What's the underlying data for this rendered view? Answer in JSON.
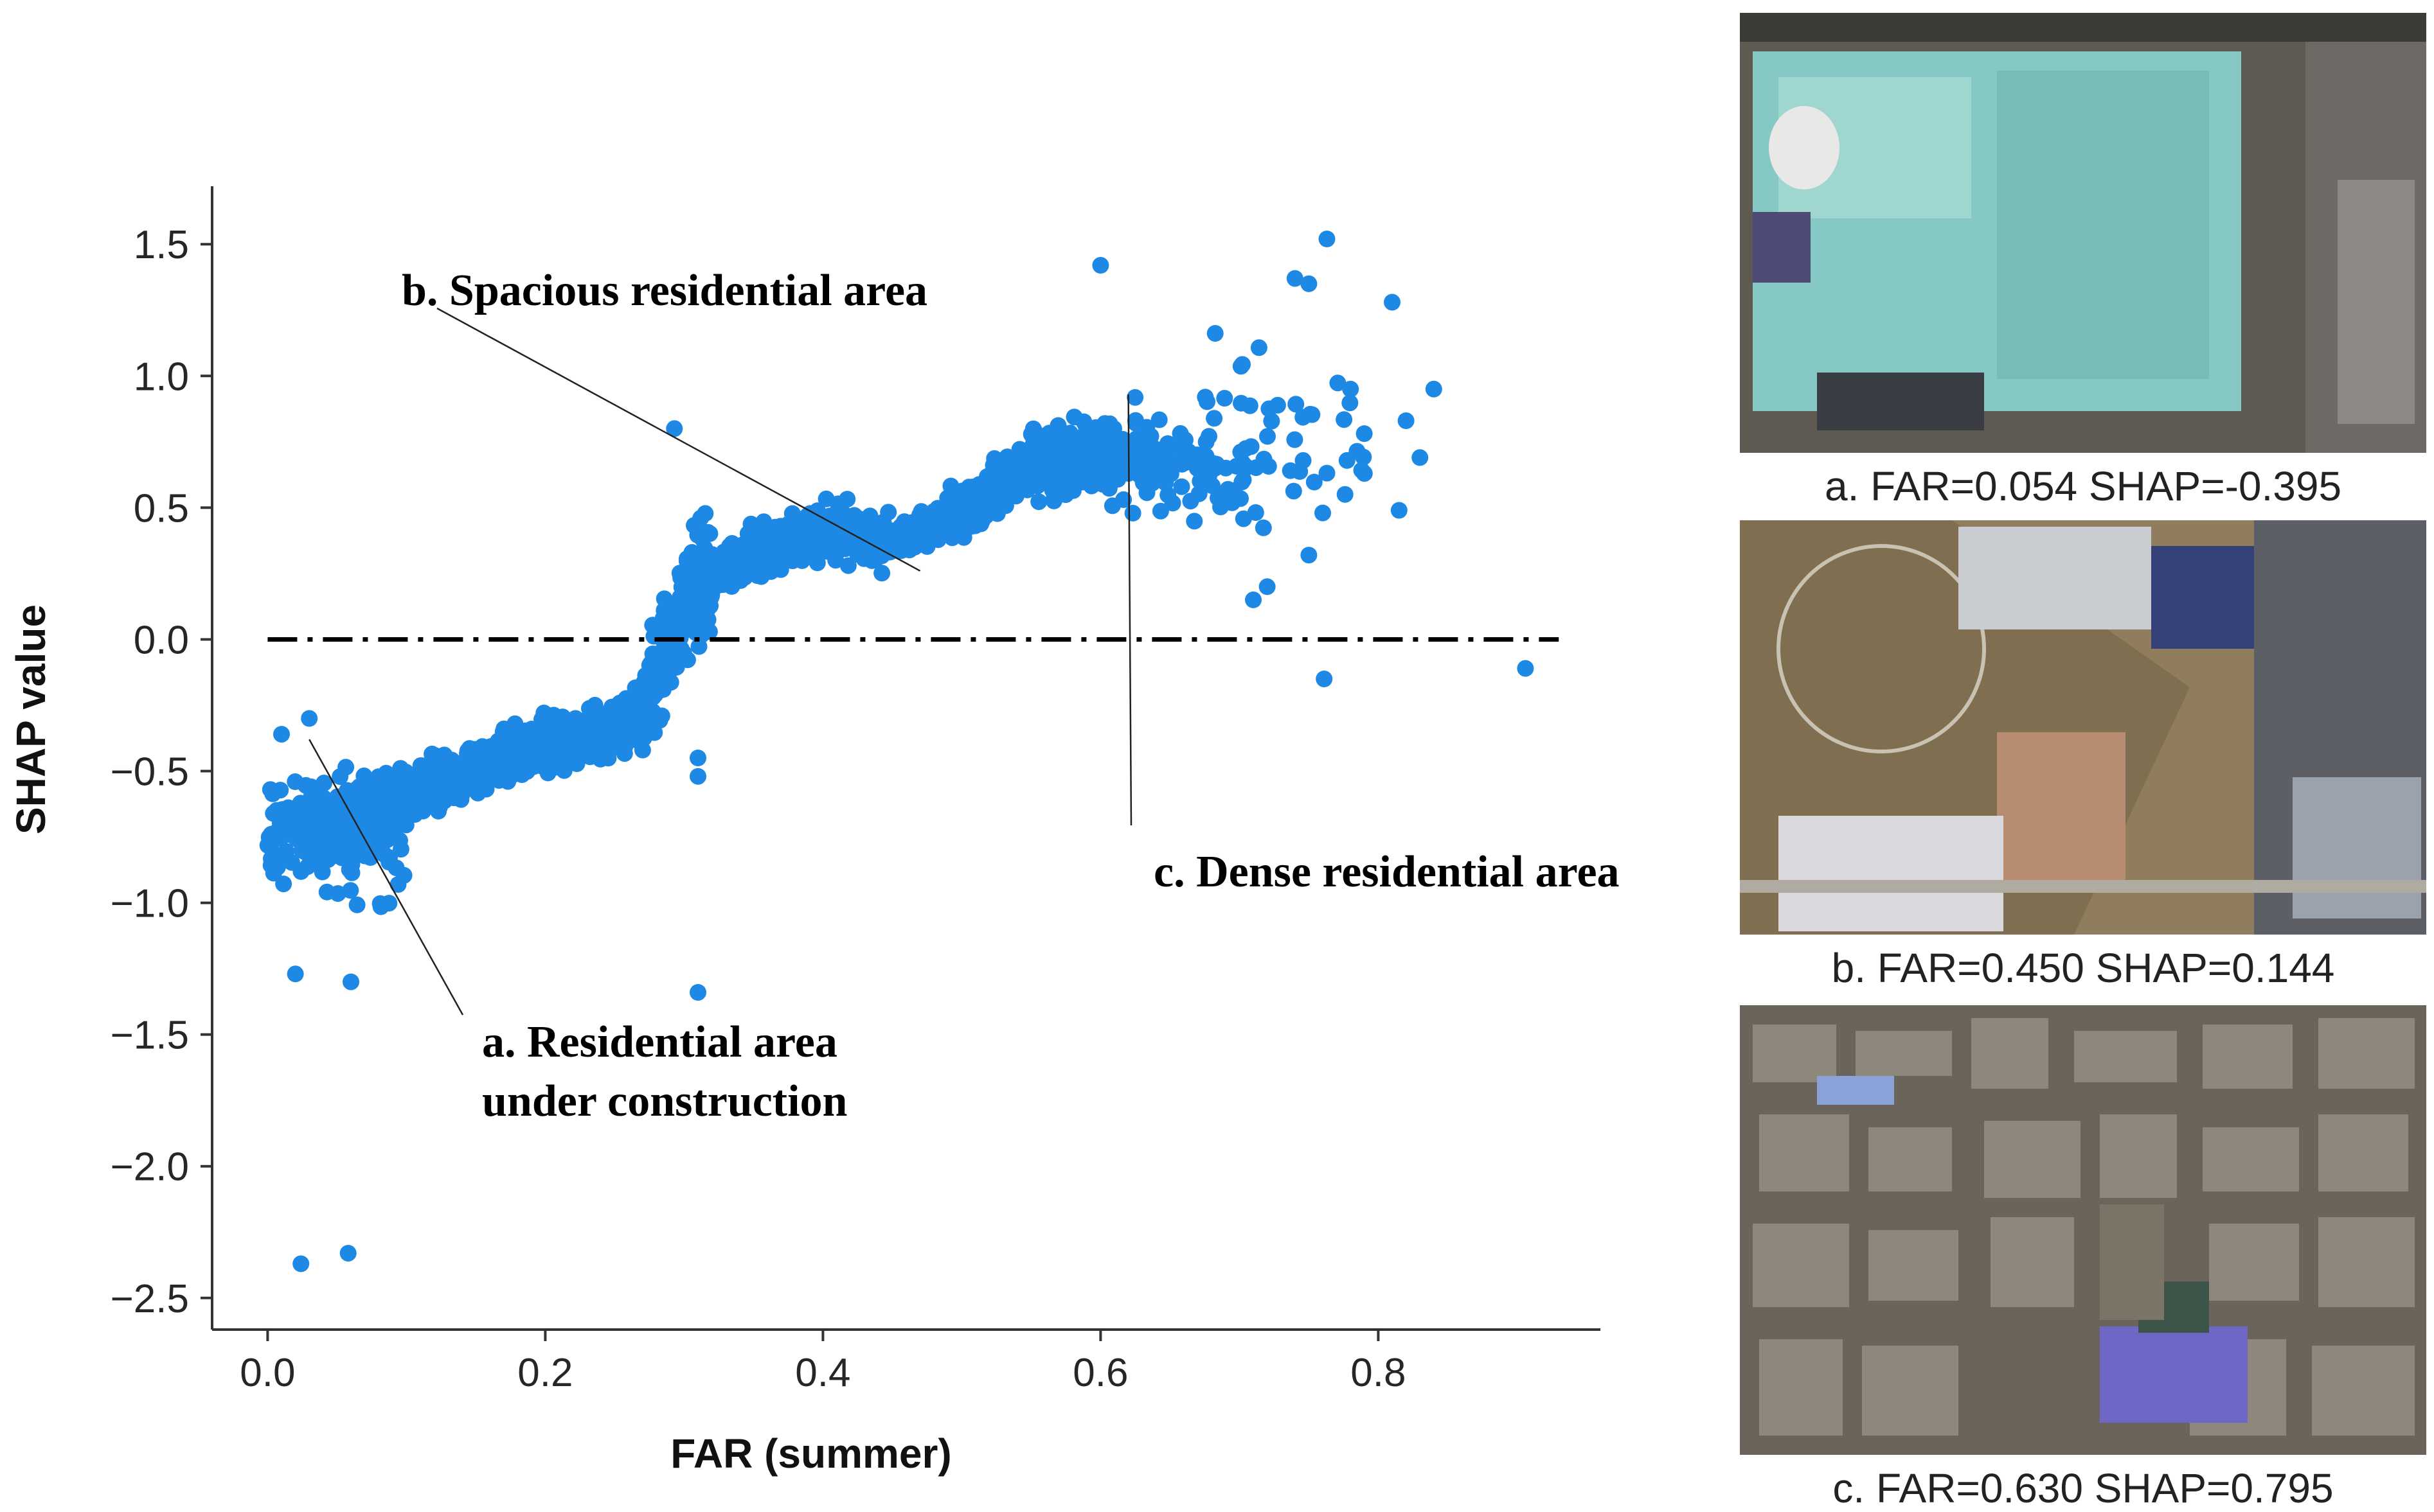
{
  "chart_data": {
    "type": "scatter",
    "xlabel": "FAR (summer)",
    "ylabel": "SHAP value",
    "xlim": [
      -0.04,
      0.96
    ],
    "ylim": [
      -2.62,
      1.72
    ],
    "xticks": [
      "0.0",
      "0.2",
      "0.4",
      "0.6",
      "0.8"
    ],
    "yticks": [
      "1.5",
      "1.0",
      "0.5",
      "0.0",
      "−0.5",
      "−1.0",
      "−1.5",
      "−2.0",
      "−2.5"
    ],
    "point_color": "#1e88e5",
    "zero_line": {
      "y": 0.0,
      "style": "dash-dot",
      "color": "#000000"
    },
    "trend": [
      [
        0.01,
        -0.62
      ],
      [
        0.05,
        -0.7
      ],
      [
        0.1,
        -0.58
      ],
      [
        0.15,
        -0.48
      ],
      [
        0.2,
        -0.4
      ],
      [
        0.26,
        -0.33
      ],
      [
        0.28,
        -0.12
      ],
      [
        0.31,
        0.22
      ],
      [
        0.35,
        0.32
      ],
      [
        0.4,
        0.42
      ],
      [
        0.45,
        0.36
      ],
      [
        0.5,
        0.48
      ],
      [
        0.55,
        0.66
      ],
      [
        0.6,
        0.7
      ],
      [
        0.65,
        0.66
      ],
      [
        0.7,
        0.58
      ],
      [
        0.75,
        0.55
      ]
    ],
    "outliers": [
      {
        "x": 0.024,
        "y": -2.37
      },
      {
        "x": 0.058,
        "y": -2.33
      },
      {
        "x": 0.31,
        "y": -1.34
      },
      {
        "x": 0.31,
        "y": -0.45
      },
      {
        "x": 0.31,
        "y": -0.52
      },
      {
        "x": 0.293,
        "y": 0.8
      },
      {
        "x": 0.6,
        "y": 1.42
      },
      {
        "x": 0.763,
        "y": 1.52
      },
      {
        "x": 0.74,
        "y": 1.37
      },
      {
        "x": 0.75,
        "y": 1.35
      },
      {
        "x": 0.81,
        "y": 1.28
      },
      {
        "x": 0.84,
        "y": 0.95
      },
      {
        "x": 0.82,
        "y": 0.83
      },
      {
        "x": 0.83,
        "y": 0.69
      },
      {
        "x": 0.815,
        "y": 0.49
      },
      {
        "x": 0.906,
        "y": -0.11
      },
      {
        "x": 0.761,
        "y": -0.15
      },
      {
        "x": 0.78,
        "y": 0.95
      },
      {
        "x": 0.79,
        "y": 0.63
      },
      {
        "x": 0.71,
        "y": 0.15
      },
      {
        "x": 0.72,
        "y": 0.2
      },
      {
        "x": 0.75,
        "y": 0.32
      },
      {
        "x": 0.76,
        "y": 0.48
      },
      {
        "x": 0.02,
        "y": -1.27
      },
      {
        "x": 0.06,
        "y": -1.3
      },
      {
        "x": 0.005,
        "y": -0.84
      },
      {
        "x": 0.01,
        "y": -0.36
      },
      {
        "x": 0.03,
        "y": -0.3
      }
    ],
    "annotations": [
      {
        "id": "a",
        "lines": [
          "a. Residential area",
          "under construction"
        ],
        "target": {
          "x": 0.03,
          "y": -0.38
        }
      },
      {
        "id": "b",
        "lines": [
          "b. Spacious residential area"
        ],
        "target": {
          "x": 0.47,
          "y": 0.26
        }
      },
      {
        "id": "c",
        "lines": [
          "c. Dense residential area"
        ],
        "target": {
          "x": 0.62,
          "y": 0.93
        }
      }
    ]
  },
  "images": {
    "a": {
      "caption": "a. FAR=0.054   SHAP=-0.395"
    },
    "b": {
      "caption": "b. FAR=0.450   SHAP=0.144"
    },
    "c": {
      "caption": "c. FAR=0.630  SHAP=0.795"
    }
  }
}
